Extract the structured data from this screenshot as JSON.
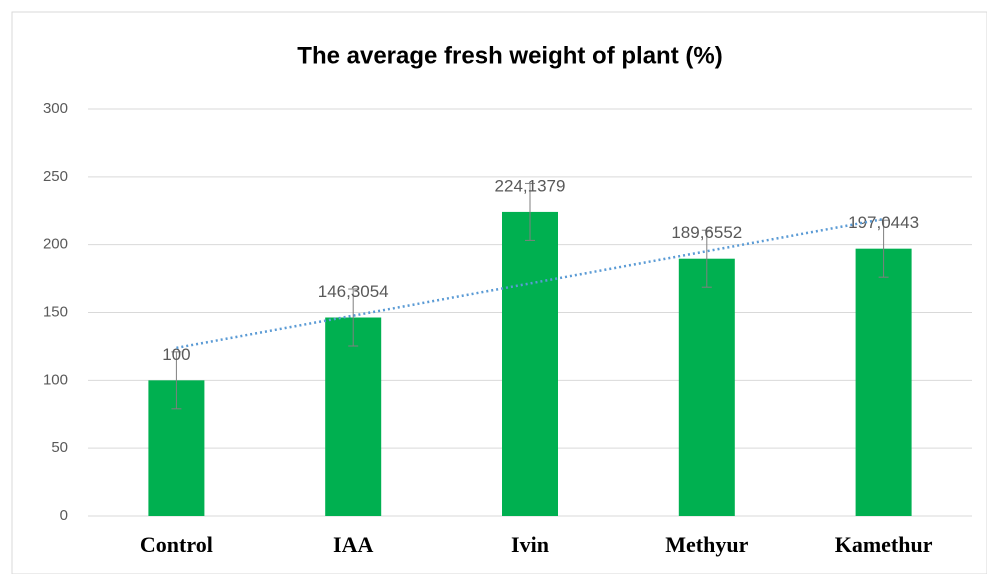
{
  "chart_data": {
    "type": "bar",
    "title": "The average fresh weight of plant (%)",
    "categories": [
      "Control",
      "IAA",
      "Ivin",
      "Methyur",
      "Kamethur"
    ],
    "values": [
      100,
      146.3054,
      224.1379,
      189.6552,
      197.0443
    ],
    "value_labels": [
      "100",
      "146,3054",
      "224,1379",
      "189,6552",
      "197,0443"
    ],
    "errors": [
      21,
      21,
      21,
      21,
      21
    ],
    "color": "#00b050",
    "trendline": "linear",
    "trendline_color": "#5b9bd5",
    "ylim": [
      0,
      300
    ],
    "yticks": [
      0,
      50,
      100,
      150,
      200,
      250,
      300
    ],
    "grid": true
  }
}
